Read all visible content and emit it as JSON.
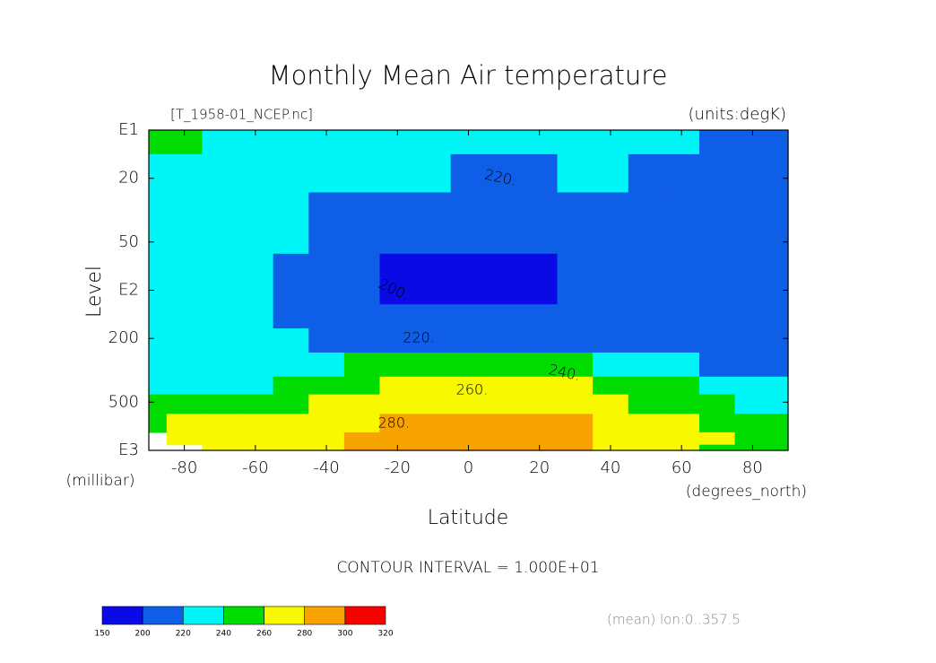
{
  "chart_data": {
    "type": "contour",
    "title": "Monthly Mean Air temperature",
    "subtitle_left": "[T_1958-01_NCEP.nc]",
    "subtitle_right": "(units:degK)",
    "x_label": "Latitude",
    "x_units": "(degrees_north)",
    "y_label": "Level",
    "y_units": "(millibar)",
    "footer": "CONTOUR INTERVAL = 1.000E+01",
    "note": "(mean) lon:0..357.5",
    "xlim": [
      -90,
      90
    ],
    "xticks": [
      -80,
      -60,
      -40,
      -20,
      0,
      20,
      40,
      60,
      80
    ],
    "ylim": [
      1000,
      10
    ],
    "y_log": true,
    "yticks": [
      {
        "value": 10,
        "label": "E1"
      },
      20,
      50,
      {
        "value": 100,
        "label": "E2"
      },
      200,
      500,
      {
        "value": 1000,
        "label": "E3"
      }
    ],
    "x": [
      -90,
      -80,
      -70,
      -60,
      -50,
      -40,
      -30,
      -20,
      -10,
      0,
      10,
      20,
      30,
      40,
      50,
      60,
      70,
      80,
      90
    ],
    "levels": [
      10,
      20,
      30,
      50,
      70,
      100,
      150,
      200,
      300,
      400,
      500,
      700,
      850,
      1000
    ],
    "z": [
      [
        245,
        242,
        238,
        236,
        234,
        232,
        230,
        229,
        228,
        228,
        229,
        229,
        228,
        226,
        224,
        222,
        218,
        215,
        214
      ],
      [
        236,
        234,
        232,
        229,
        227,
        225,
        224,
        223,
        222,
        219,
        217,
        218,
        221,
        221,
        219,
        216,
        214,
        212,
        211
      ],
      [
        234,
        232,
        229,
        226,
        222,
        219,
        216,
        215,
        214,
        213,
        213,
        214,
        215,
        215,
        214,
        213,
        212,
        211,
        210
      ],
      [
        232,
        230,
        228,
        225,
        221,
        214,
        210,
        208,
        207,
        206,
        206,
        207,
        208,
        210,
        211,
        212,
        211,
        210,
        209
      ],
      [
        230,
        229,
        227,
        223,
        218,
        212,
        207,
        198,
        197,
        196,
        196,
        197,
        205,
        209,
        211,
        212,
        211,
        210,
        209
      ],
      [
        229,
        228,
        226,
        222,
        218,
        212,
        207,
        198,
        197,
        196,
        196,
        197,
        205,
        209,
        211,
        212,
        212,
        211,
        210
      ],
      [
        228,
        227,
        225,
        222,
        219,
        213,
        210,
        206,
        205,
        204,
        204,
        205,
        207,
        210,
        212,
        213,
        213,
        212,
        211
      ],
      [
        227,
        226,
        225,
        224,
        222,
        219,
        216,
        214,
        213,
        212,
        212,
        213,
        214,
        215,
        216,
        216,
        215,
        214,
        214
      ],
      [
        231,
        232,
        234,
        236,
        238,
        239,
        241,
        241,
        242,
        243,
        243,
        242,
        241,
        238,
        234,
        228,
        219,
        217,
        216
      ],
      [
        234,
        236,
        238,
        239,
        245,
        250,
        255,
        261,
        263,
        264,
        264,
        263,
        261,
        256,
        248,
        240,
        236,
        233,
        232
      ],
      [
        242,
        245,
        248,
        252,
        257,
        262,
        266,
        270,
        272,
        273,
        273,
        272,
        269,
        265,
        258,
        252,
        245,
        238,
        236
      ],
      [
        258,
        262,
        264,
        266,
        268,
        272,
        277,
        281,
        283,
        284,
        284,
        283,
        281,
        278,
        272,
        266,
        258,
        255,
        254
      ],
      [
        null,
        266,
        268,
        270,
        272,
        276,
        280,
        284,
        286,
        287,
        287,
        286,
        285,
        279,
        276,
        272,
        262,
        258,
        256
      ],
      [
        null,
        null,
        270,
        272,
        274,
        278,
        281,
        285,
        287,
        288,
        288,
        287,
        286,
        278,
        274,
        270,
        258,
        256,
        255
      ]
    ],
    "contour_labels": [
      "220.",
      "200.",
      "220.",
      "240.",
      "260.",
      "280."
    ],
    "colorbar": {
      "levels": [
        150,
        200,
        220,
        240,
        260,
        280,
        300,
        320
      ],
      "colors": [
        "#0a0ae6",
        "#0f5ee8",
        "#00f6f6",
        "#00dc00",
        "#f8f800",
        "#f8a400",
        "#f80000"
      ]
    }
  }
}
